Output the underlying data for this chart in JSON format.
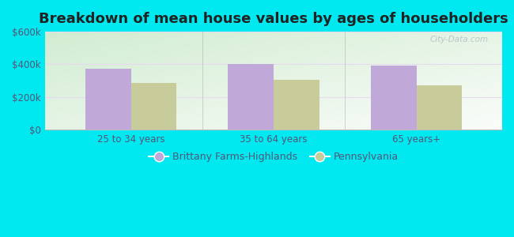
{
  "title": "Breakdown of mean house values by ages of householders",
  "categories": [
    "25 to 34 years",
    "35 to 64 years",
    "65 years+"
  ],
  "series": {
    "Brittany Farms-Highlands": [
      375000,
      400000,
      395000
    ],
    "Pennsylvania": [
      285000,
      305000,
      270000
    ]
  },
  "bar_colors": {
    "Brittany Farms-Highlands": "#c0a8d8",
    "Pennsylvania": "#c8cc9a"
  },
  "ylim": [
    0,
    600000
  ],
  "yticks": [
    0,
    200000,
    400000,
    600000
  ],
  "ytick_labels": [
    "$0",
    "$200k",
    "$400k",
    "$600k"
  ],
  "outer_background": "#00e8f0",
  "plot_bg_left": "#cce8cc",
  "plot_bg_right": "#f0f8f0",
  "title_fontsize": 13,
  "legend_fontsize": 9,
  "tick_fontsize": 8.5,
  "bar_width": 0.32,
  "watermark": "City-Data.com",
  "grid_color": "#e8e0f0",
  "divider_color": "#aaaaaa",
  "axis_color": "#bbbbbb",
  "text_color": "#555577"
}
